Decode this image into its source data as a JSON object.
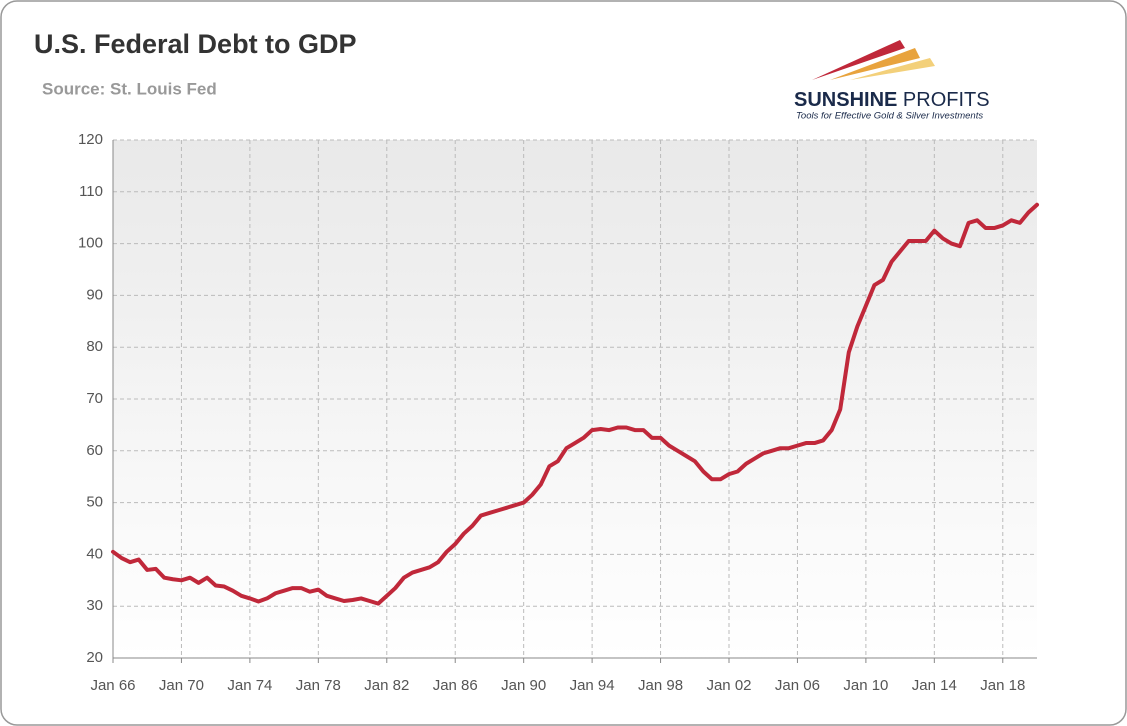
{
  "chart_data": {
    "type": "line",
    "title": "U.S. Federal Debt to GDP",
    "subtitle": "Source: St. Louis Fed",
    "logo": {
      "word1": "SUNSHINE",
      "word2": "PROFITS",
      "tagline": "Tools for Effective Gold & Silver Investments"
    },
    "categories": [
      "Jan 66",
      null,
      null,
      null,
      null,
      null,
      null,
      null,
      "Jan 70",
      null,
      null,
      null,
      null,
      null,
      null,
      null,
      "Jan 74",
      null,
      null,
      null,
      null,
      null,
      null,
      null,
      "Jan 78",
      null,
      null,
      null,
      null,
      null,
      null,
      null,
      "Jan 82",
      null,
      null,
      null,
      null,
      null,
      null,
      null,
      "Jan 86",
      null,
      null,
      null,
      null,
      null,
      null,
      null,
      "Jan 90",
      null,
      null,
      null,
      null,
      null,
      null,
      null,
      "Jan 94",
      null,
      null,
      null,
      null,
      null,
      null,
      null,
      "Jan 98",
      null,
      null,
      null,
      null,
      null,
      null,
      null,
      "Jan 02",
      null,
      null,
      null,
      null,
      null,
      null,
      null,
      "Jan 06",
      null,
      null,
      null,
      null,
      null,
      null,
      null,
      "Jan 10",
      null,
      null,
      null,
      null,
      null,
      null,
      null,
      "Jan 14",
      null,
      null,
      null,
      null,
      null,
      null,
      null,
      "Jan 18",
      null,
      null,
      null,
      null
    ],
    "values": [
      40.5,
      39.3,
      38.5,
      39.0,
      37.0,
      37.2,
      35.5,
      35.2,
      35.0,
      35.5,
      34.5,
      35.5,
      34.0,
      33.8,
      33.0,
      32.0,
      31.5,
      30.9,
      31.5,
      32.5,
      33.0,
      33.5,
      33.5,
      32.8,
      33.2,
      32.0,
      31.5,
      31.0,
      31.2,
      31.5,
      31.0,
      30.5,
      32.0,
      33.5,
      35.5,
      36.5,
      37.0,
      37.5,
      38.5,
      40.5,
      42.0,
      44.0,
      45.5,
      47.5,
      48.0,
      48.5,
      49.0,
      49.5,
      50.0,
      51.5,
      53.5,
      57.0,
      58.0,
      60.5,
      61.5,
      62.5,
      64.0,
      64.2,
      64.0,
      64.5,
      64.5,
      64.0,
      64.0,
      62.5,
      62.5,
      61.0,
      60.0,
      59.0,
      58.0,
      56.0,
      54.5,
      54.5,
      55.5,
      56.0,
      57.5,
      58.5,
      59.5,
      60.0,
      60.5,
      60.5,
      61.0,
      61.5,
      61.5,
      62.0,
      64.0,
      68.0,
      79.0,
      84.0,
      88.0,
      92.0,
      93.0,
      96.5,
      98.5,
      100.5,
      100.5,
      100.5,
      102.5,
      101.0,
      100.0,
      99.5,
      104.0,
      104.5,
      103.0,
      103.0,
      103.5,
      104.5,
      104.0,
      106.0,
      107.5
    ],
    "color": "#c0283a",
    "ylim": [
      20,
      120
    ],
    "yticks": [
      20,
      30,
      40,
      50,
      60,
      70,
      80,
      90,
      100,
      110,
      120
    ],
    "grid": true
  }
}
